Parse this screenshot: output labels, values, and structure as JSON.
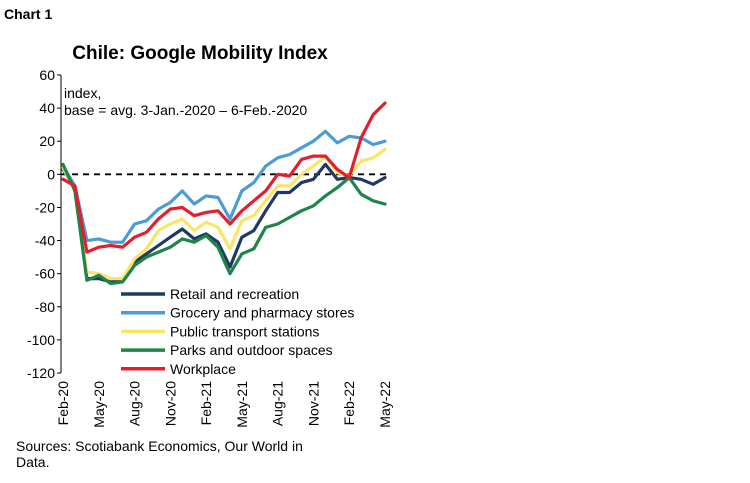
{
  "label": "Chart 1",
  "chart_data": {
    "type": "line",
    "title": "Chile: Google Mobility Index",
    "annotation": [
      "index,",
      "base = avg. 3-Jan.-2020 – 6-Feb.-2020"
    ],
    "source": [
      "Sources: Scotiabank Economics, Our World in",
      "Data."
    ],
    "ylim": [
      -120,
      60
    ],
    "yticks": [
      60,
      40,
      20,
      0,
      -20,
      -40,
      -60,
      -80,
      -100,
      -120
    ],
    "xticks": [
      "Feb-20",
      "May-20",
      "Aug-20",
      "Nov-20",
      "Feb-21",
      "May-21",
      "Aug-21",
      "Nov-21",
      "Feb-22",
      "May-22"
    ],
    "reference_line": 0,
    "x": [
      "Feb-20",
      "Mar-20",
      "Apr-20",
      "May-20",
      "Jun-20",
      "Jul-20",
      "Aug-20",
      "Sep-20",
      "Oct-20",
      "Nov-20",
      "Dec-20",
      "Jan-21",
      "Feb-21",
      "Mar-21",
      "Apr-21",
      "May-21",
      "Jun-21",
      "Jul-21",
      "Aug-21",
      "Sep-21",
      "Oct-21",
      "Nov-21",
      "Dec-21",
      "Jan-22",
      "Feb-22",
      "Mar-22",
      "Apr-22",
      "May-22"
    ],
    "series": [
      {
        "name": "Retail and recreation",
        "color": "#1f3864",
        "values": [
          3,
          -8,
          -63,
          -63,
          -65,
          -64,
          -53,
          -48,
          -43,
          -38,
          -33,
          -39,
          -36,
          -41,
          -56,
          -38,
          -34,
          -22,
          -11,
          -11,
          -5,
          -3,
          6,
          -3,
          -2,
          -3,
          -6,
          -2
        ]
      },
      {
        "name": "Grocery and pharmacy stores",
        "color": "#4a9cd2",
        "values": [
          5,
          -7,
          -40,
          -39,
          -41,
          -41,
          -30,
          -28,
          -21,
          -17,
          -10,
          -18,
          -13,
          -14,
          -27,
          -10,
          -5,
          5,
          10,
          12,
          16,
          20,
          26,
          19,
          23,
          22,
          18,
          20
        ]
      },
      {
        "name": "Public transport stations",
        "color": "#fce566",
        "values": [
          4,
          -10,
          -59,
          -60,
          -63,
          -63,
          -51,
          -45,
          -34,
          -30,
          -27,
          -34,
          -29,
          -32,
          -45,
          -28,
          -25,
          -16,
          -7,
          -7,
          0,
          5,
          11,
          1,
          -1,
          8,
          10,
          15
        ]
      },
      {
        "name": "Parks and outdoor spaces",
        "color": "#1e8449",
        "values": [
          6,
          -10,
          -64,
          -61,
          -66,
          -65,
          -55,
          -50,
          -47,
          -44,
          -39,
          -41,
          -37,
          -44,
          -60,
          -48,
          -45,
          -32,
          -30,
          -26,
          -22,
          -19,
          -13,
          -8,
          -2,
          -12,
          -16,
          -18
        ]
      },
      {
        "name": "Workplace",
        "color": "#e41e2b",
        "values": [
          -3,
          -7,
          -47,
          -44,
          -43,
          -44,
          -38,
          -35,
          -27,
          -21,
          -20,
          -25,
          -23,
          -22,
          -30,
          -22,
          -16,
          -10,
          0,
          -1,
          9,
          11,
          11,
          3,
          -2,
          22,
          36,
          43
        ]
      }
    ],
    "legend_position": "lower-center"
  }
}
